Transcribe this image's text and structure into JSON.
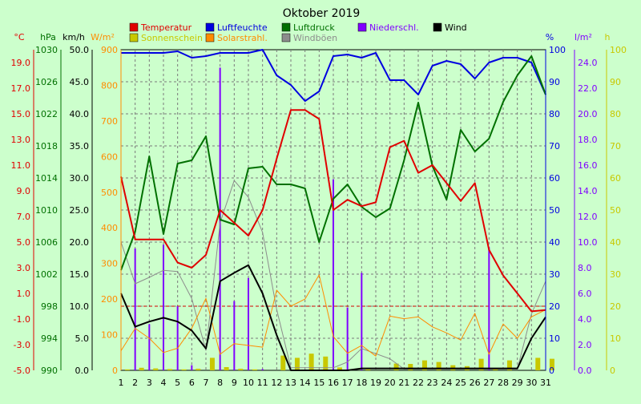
{
  "colors": {
    "background": "#ccffcc",
    "plot": "#ccffcc",
    "grid": "#7a7a7a",
    "zero_line": "#d40000",
    "temperature": "#e00000",
    "humidity": "#0000e0",
    "pressure": "#007000",
    "precipitation": "#8000ff",
    "wind": "#000000",
    "sunshine": "#c8c800",
    "solar": "#ff8c00",
    "gusts": "#8c8c8c"
  },
  "chart_data": {
    "type": "line",
    "title": "Oktober 2019",
    "legend_position": "top",
    "grid": true,
    "categories": [
      "1",
      "2",
      "3",
      "4",
      "5",
      "6",
      "7",
      "8",
      "9",
      "10",
      "11",
      "12",
      "13",
      "14",
      "15",
      "16",
      "17",
      "18",
      "19",
      "20",
      "21",
      "22",
      "23",
      "24",
      "25",
      "26",
      "27",
      "28",
      "29",
      "30",
      "31"
    ],
    "legend": [
      {
        "key": "temperature",
        "label": "Temperatur"
      },
      {
        "key": "humidity",
        "label": "Luftfeuchte"
      },
      {
        "key": "pressure",
        "label": "Luftdruck"
      },
      {
        "key": "precipitation",
        "label": "Niederschl."
      },
      {
        "key": "wind",
        "label": "Wind"
      },
      {
        "key": "sunshine",
        "label": "Sonnenschein"
      },
      {
        "key": "solar",
        "label": "Solarstrahl."
      },
      {
        "key": "gusts",
        "label": "Windböen"
      }
    ],
    "axes": {
      "temperature": {
        "unit": "°C",
        "range": [
          -5,
          20
        ],
        "ticks": [
          "19.0",
          "17.0",
          "15.0",
          "13.0",
          "11.0",
          "9.0",
          "7.0",
          "5.0",
          "3.0",
          "1.0",
          "-1.0",
          "-3.0",
          "-5.0"
        ]
      },
      "pressure": {
        "unit": "hPa",
        "range": [
          990,
          1030
        ],
        "ticks": [
          "1030",
          "1026",
          "1022",
          "1018",
          "1014",
          "1010",
          "1006",
          "1002",
          "998",
          "994",
          "990"
        ]
      },
      "wind": {
        "unit": "km/h",
        "range": [
          0,
          50
        ],
        "ticks": [
          "50.0",
          "45.0",
          "40.0",
          "35.0",
          "30.0",
          "25.0",
          "20.0",
          "15.0",
          "10.0",
          "5.0",
          "0.0"
        ]
      },
      "solar": {
        "unit": "W/m²",
        "range": [
          0,
          900
        ],
        "ticks": [
          "900",
          "800",
          "700",
          "600",
          "500",
          "400",
          "300",
          "200",
          "100",
          "0"
        ]
      },
      "humidity": {
        "unit": "%",
        "range": [
          0,
          100
        ],
        "ticks": [
          "100",
          "90",
          "80",
          "70",
          "60",
          "50",
          "40",
          "30",
          "20",
          "10",
          "0"
        ]
      },
      "precipitation": {
        "unit": "l/m²",
        "range": [
          0,
          25
        ],
        "ticks": [
          "24.0",
          "22.0",
          "20.0",
          "18.0",
          "16.0",
          "14.0",
          "12.0",
          "10.0",
          "8.0",
          "6.0",
          "4.0",
          "2.0",
          "0.0"
        ]
      },
      "sunshine": {
        "unit": "h",
        "range": [
          0,
          100
        ],
        "ticks": [
          "100",
          "90",
          "80",
          "70",
          "60",
          "50",
          "40",
          "30",
          "20",
          "10",
          "0"
        ]
      }
    },
    "series": [
      {
        "key": "temperature",
        "name": "Temperatur",
        "axis": "temperature",
        "kind": "line",
        "values": [
          10.1,
          5.2,
          5.2,
          5.2,
          3.4,
          3.0,
          4.0,
          7.5,
          6.5,
          5.5,
          7.5,
          11.5,
          15.3,
          15.3,
          14.6,
          7.5,
          8.3,
          7.8,
          8.1,
          12.4,
          12.9,
          10.4,
          11.0,
          9.6,
          8.2,
          9.6,
          4.4,
          2.4,
          1.0,
          -0.4,
          -0.3
        ]
      },
      {
        "key": "humidity",
        "name": "Luftfeuchte",
        "axis": "humidity",
        "kind": "line",
        "values": [
          99,
          99,
          99,
          99,
          99.5,
          97.5,
          98,
          99,
          99,
          99,
          100,
          92,
          89,
          84,
          87,
          98,
          98.5,
          97.5,
          99,
          90.5,
          90.5,
          86,
          95,
          96.5,
          95.5,
          91,
          96,
          97.5,
          97.5,
          96,
          86
        ]
      },
      {
        "key": "pressure",
        "name": "Luftdruck",
        "axis": "pressure",
        "kind": "line",
        "values": [
          1002.5,
          1007.3,
          1016.7,
          1007.0,
          1015.8,
          1016.2,
          1019.2,
          1008.8,
          1008.2,
          1015.2,
          1015.4,
          1013.2,
          1013.2,
          1012.7,
          1006.0,
          1011.4,
          1013.2,
          1010.4,
          1009.1,
          1010.2,
          1016.2,
          1023.4,
          1015.5,
          1011.3,
          1020.0,
          1017.3,
          1018.9,
          1023.5,
          1026.8,
          1029.2,
          1024.4
        ]
      },
      {
        "key": "wind",
        "name": "Wind",
        "axis": "wind",
        "kind": "line",
        "values": [
          12.0,
          6.8,
          7.6,
          8.2,
          7.6,
          6.2,
          3.4,
          13.9,
          15.2,
          16.4,
          12.0,
          5.5,
          0,
          0,
          0,
          0,
          0,
          0.3,
          0.3,
          0.3,
          0.3,
          0.3,
          0.3,
          0.3,
          0.3,
          0.3,
          0.3,
          0.3,
          0.3,
          5.0,
          8.3
        ]
      },
      {
        "key": "gusts",
        "name": "Windböen",
        "axis": "wind",
        "kind": "line",
        "values": [
          20.0,
          13.5,
          14.5,
          15.6,
          15.4,
          11.2,
          3.1,
          23.0,
          29.6,
          27.0,
          21.5,
          9.5,
          0.4,
          0.4,
          0.4,
          0.4,
          1.3,
          3.4,
          2.6,
          1.8,
          0.2,
          0.2,
          0.2,
          0.2,
          0.2,
          0.2,
          0.2,
          0.2,
          0.2,
          8.8,
          13.9
        ]
      },
      {
        "key": "solar",
        "name": "Solarstrahl.",
        "axis": "solar",
        "kind": "line",
        "values": [
          55,
          118,
          90,
          50,
          62,
          118,
          202,
          45,
          75,
          70,
          65,
          225,
          180,
          200,
          268,
          95,
          48,
          70,
          40,
          152,
          145,
          150,
          122,
          105,
          85,
          160,
          45,
          130,
          90,
          150,
          170
        ]
      },
      {
        "key": "precipitation",
        "name": "Niederschl.",
        "axis": "precipitation",
        "kind": "bar",
        "offset": 0.0,
        "values": [
          0,
          9.5,
          3.6,
          9.8,
          5.0,
          0.4,
          0,
          23.6,
          5.4,
          7.2,
          0.1,
          0,
          0,
          0,
          0,
          14.9,
          4.9,
          7.6,
          0,
          0,
          0,
          0,
          0,
          0,
          0,
          0,
          9.6,
          0,
          0,
          0,
          0
        ]
      },
      {
        "key": "sunshine",
        "name": "Sonnenschein",
        "axis": "sunshine",
        "kind": "bar",
        "offset": 0.5,
        "values": [
          0.3,
          0.8,
          0.6,
          0.4,
          0.3,
          0.5,
          3.9,
          1.0,
          0.5,
          0.3,
          0,
          4.6,
          3.9,
          5.2,
          4.3,
          0.9,
          0,
          0.3,
          0,
          2.1,
          2.0,
          3.1,
          2.6,
          1.6,
          1.3,
          3.6,
          0.5,
          3.1,
          0,
          3.9,
          3.6
        ]
      }
    ]
  }
}
